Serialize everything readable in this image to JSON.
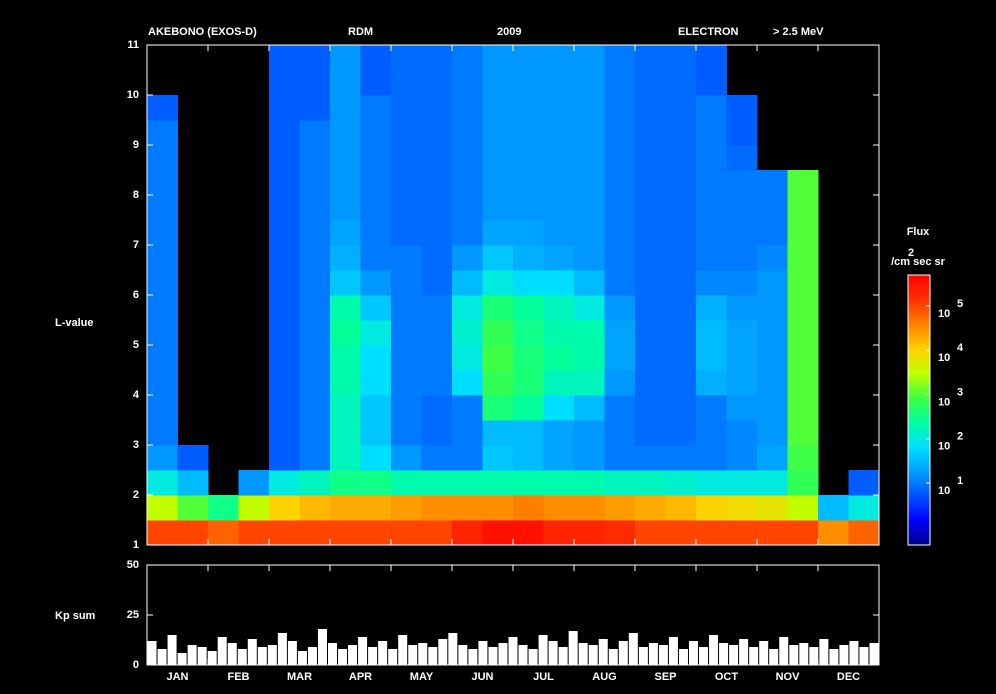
{
  "chart_data": [
    {
      "type": "heatmap",
      "header": [
        "AKEBONO (EXOS-D)",
        "RDM",
        "2009",
        "ELECTRON",
        "> 2.5 MeV"
      ],
      "ylabel": "L-value",
      "ylim": [
        1,
        11
      ],
      "yticks": [
        1,
        2,
        3,
        4,
        5,
        6,
        7,
        8,
        9,
        10,
        11
      ],
      "colorbar_title": "Flux",
      "flux_unit_sup": "2",
      "flux_unit": "/cm sec sr",
      "clim": [
        -0.4,
        5.7
      ],
      "cticks": [
        {
          "value": 1,
          "label": "10",
          "sup": "1"
        },
        {
          "value": 2,
          "label": "10",
          "sup": "2"
        },
        {
          "value": 3,
          "label": "10",
          "sup": "3"
        },
        {
          "value": 4,
          "label": "10",
          "sup": "4"
        },
        {
          "value": 5,
          "label": "10",
          "sup": "5"
        }
      ],
      "colorscale": [
        "#00008c",
        "#0000ff",
        "#0050ff",
        "#00a0ff",
        "#00e0ff",
        "#00ff9f",
        "#40ff40",
        "#c0ff00",
        "#ffd000",
        "#ff8000",
        "#ff3000",
        "#ff0000"
      ],
      "z": [
        [
          5,
          3.5,
          2,
          1.2,
          1,
          1,
          1,
          1,
          1,
          1,
          1,
          1,
          1,
          1,
          1,
          1,
          1,
          0.8,
          null,
          null
        ],
        [
          5,
          3,
          1.5,
          0.8,
          null,
          null,
          null,
          null,
          null,
          null,
          null,
          null,
          null,
          null,
          null,
          null,
          null,
          null,
          null,
          null
        ],
        [
          4.8,
          2.5,
          null,
          null,
          null,
          null,
          null,
          null,
          null,
          null,
          null,
          null,
          null,
          null,
          null,
          null,
          null,
          null,
          null,
          null
        ],
        [
          5,
          3.5,
          1.2,
          null,
          null,
          null,
          null,
          null,
          null,
          null,
          null,
          null,
          null,
          null,
          null,
          null,
          null,
          null,
          null,
          null
        ],
        [
          5,
          4,
          2,
          0.8,
          0.8,
          0.8,
          0.8,
          0.8,
          0.8,
          0.8,
          0.8,
          0.8,
          0.8,
          0.8,
          0.8,
          0.8,
          0.8,
          0.8,
          0.8,
          0.8
        ],
        [
          5,
          4.2,
          2.2,
          1,
          1,
          1,
          1,
          1,
          1,
          1,
          1,
          1,
          1,
          1,
          1,
          1,
          1,
          0.8,
          0.8,
          0.8
        ],
        [
          5,
          4.3,
          2.5,
          2.2,
          2.2,
          2.2,
          2.3,
          2.3,
          2.4,
          2.3,
          1.6,
          1.4,
          1.3,
          1.2,
          1.2,
          1.2,
          1.2,
          1.2,
          1.2,
          1.2
        ],
        [
          5,
          4.3,
          2.5,
          1.8,
          1.6,
          1.6,
          1.8,
          1.8,
          2,
          1.6,
          1.2,
          1,
          1,
          1,
          1,
          1,
          1,
          1,
          0.8,
          0.8
        ],
        [
          5,
          4.4,
          2.3,
          1.2,
          1,
          1,
          1,
          1,
          1,
          1,
          1,
          1,
          0.9,
          0.9,
          0.9,
          0.9,
          0.9,
          0.9,
          0.9,
          0.9
        ],
        [
          5,
          4.5,
          2.3,
          1,
          0.9,
          0.9,
          1,
          1,
          1,
          1,
          0.9,
          0.9,
          0.9,
          0.9,
          0.9,
          0.9,
          0.9,
          0.9,
          0.9,
          0.9
        ],
        [
          5.3,
          4.5,
          2.3,
          1,
          1,
          1,
          1.8,
          2,
          2.1,
          2,
          1.5,
          1.2,
          1,
          1,
          1,
          1,
          1,
          1,
          1,
          1
        ],
        [
          5.5,
          4.5,
          2.3,
          1.6,
          1.5,
          2.6,
          2.8,
          2.9,
          2.8,
          2.6,
          2,
          1.6,
          1.3,
          1.2,
          1.2,
          1.2,
          1.2,
          1.2,
          1.2,
          1.2
        ],
        [
          5.5,
          4.6,
          2.3,
          1.5,
          1.5,
          2.4,
          2.6,
          2.6,
          2.5,
          2.4,
          1.8,
          1.4,
          1.3,
          1.2,
          1.2,
          1.2,
          1.2,
          1.2,
          1.2,
          1.2
        ],
        [
          5.3,
          4.5,
          2.3,
          1.3,
          1.3,
          1.8,
          2.2,
          2.4,
          2.3,
          2.2,
          1.8,
          1.3,
          1.2,
          1.2,
          1.2,
          1.2,
          1.2,
          1.2,
          1.2,
          1.2
        ],
        [
          5.3,
          4.5,
          2.3,
          1.2,
          1.2,
          1.5,
          2.2,
          2.3,
          2.3,
          2,
          1.5,
          1.2,
          1.2,
          1.2,
          1.2,
          1.2,
          1.2,
          1.2,
          1.2,
          1.2
        ],
        [
          5.2,
          4.4,
          2.2,
          1,
          1,
          1,
          1.2,
          1.3,
          1.3,
          1.2,
          1,
          1,
          1,
          1,
          1,
          1,
          1,
          1,
          1,
          1
        ],
        [
          5,
          4.3,
          2.2,
          1,
          0.9,
          0.9,
          0.9,
          0.9,
          0.9,
          0.9,
          0.9,
          0.9,
          0.9,
          0.9,
          0.9,
          0.9,
          0.9,
          0.9,
          0.9,
          0.9
        ],
        [
          5,
          4.2,
          2.1,
          1,
          0.9,
          0.9,
          0.9,
          0.9,
          0.9,
          0.9,
          0.9,
          0.9,
          0.9,
          0.9,
          0.9,
          0.9,
          0.9,
          0.9,
          0.9,
          0.9
        ],
        [
          5,
          4,
          2,
          1,
          1,
          1,
          1.4,
          1.5,
          1.5,
          1.4,
          1.1,
          1,
          1,
          1,
          1,
          1,
          1,
          1,
          0.8,
          0.8
        ],
        [
          5,
          3.9,
          2,
          1.1,
          1.1,
          1.2,
          1.3,
          1.3,
          1.3,
          1.2,
          1.1,
          1,
          1,
          1,
          1,
          0.9,
          0.8,
          0.8,
          null,
          null
        ],
        [
          5,
          3.8,
          2,
          1.3,
          1.2,
          1.2,
          1.2,
          1.2,
          1.2,
          1.2,
          1.2,
          1.1,
          1,
          1,
          1,
          null,
          null,
          null,
          null,
          null
        ],
        [
          5,
          3.5,
          2.8,
          2.9,
          3,
          3,
          3,
          3,
          3,
          3,
          3,
          3,
          3,
          3,
          3,
          null,
          null,
          null,
          null,
          null
        ],
        [
          4.5,
          1.5,
          null,
          null,
          null,
          null,
          null,
          null,
          null,
          null,
          null,
          null,
          null,
          null,
          null,
          null,
          null,
          null,
          null,
          null
        ],
        [
          4.8,
          2,
          0.8,
          null,
          null,
          null,
          null,
          null,
          null,
          null,
          null,
          null,
          null,
          null,
          null,
          null,
          null,
          null,
          null,
          null
        ]
      ]
    },
    {
      "type": "bar",
      "ylabel": "Kp sum",
      "ylim": [
        0,
        50
      ],
      "yticks": [
        0,
        25,
        50
      ],
      "color": "#ffffff",
      "x_labels": [
        "JAN",
        "FEB",
        "MAR",
        "APR",
        "MAY",
        "JUN",
        "JUL",
        "AUG",
        "SEP",
        "OCT",
        "NOV",
        "DEC"
      ],
      "values": [
        12,
        8,
        15,
        6,
        10,
        9,
        7,
        14,
        11,
        8,
        13,
        9,
        10,
        16,
        12,
        7,
        9,
        18,
        11,
        8,
        10,
        14,
        9,
        12,
        8,
        15,
        10,
        11,
        9,
        13,
        16,
        10,
        8,
        12,
        9,
        11,
        14,
        10,
        8,
        15,
        12,
        9,
        17,
        11,
        10,
        13,
        8,
        12,
        16,
        9,
        11,
        10,
        14,
        8,
        12,
        9,
        15,
        11,
        10,
        13,
        9,
        12,
        8,
        14,
        10,
        11,
        9,
        13,
        8,
        10,
        12,
        9,
        11
      ]
    }
  ]
}
